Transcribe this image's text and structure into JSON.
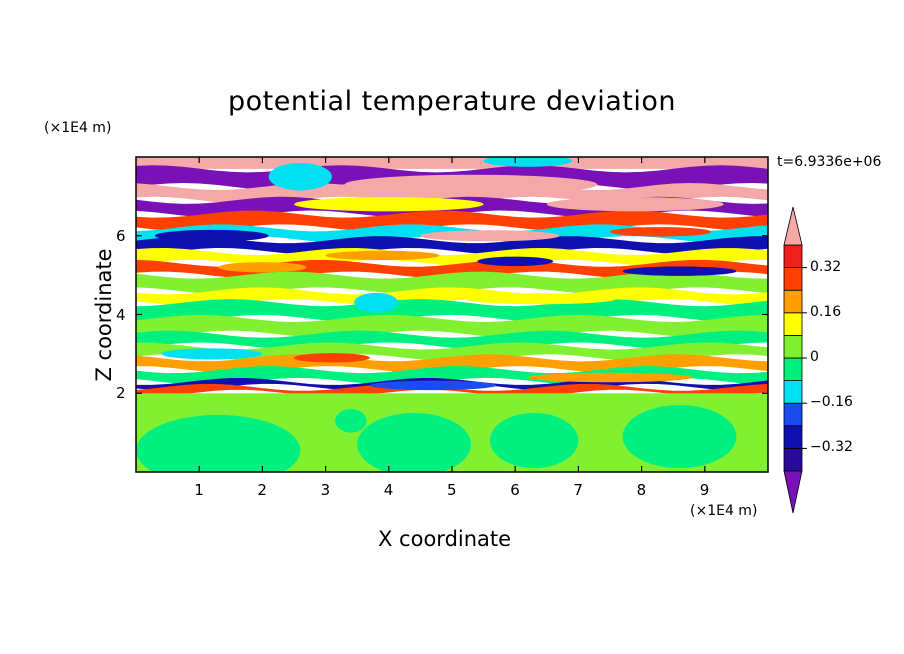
{
  "chart_data": {
    "type": "heatmap",
    "title": "potential temperature deviation",
    "xlabel": "X coordinate",
    "ylabel": "Z coordinate",
    "x_unit": "(×1E4 m)",
    "y_unit": "(×1E4 m)",
    "time_label": "t=6.9336e+06",
    "xlim": [
      0,
      10
    ],
    "ylim": [
      0,
      8
    ],
    "x_ticks": [
      "1",
      "2",
      "3",
      "4",
      "5",
      "6",
      "7",
      "8",
      "9"
    ],
    "y_ticks": [
      "2",
      "4",
      "6"
    ],
    "colorbar": {
      "levels": [
        -0.4,
        -0.32,
        -0.24,
        -0.16,
        -0.08,
        0,
        0.08,
        0.16,
        0.24,
        0.32,
        0.4
      ],
      "colors": [
        "#2a0a9a",
        "#1010b0",
        "#1a4cf0",
        "#00e0f0",
        "#00f080",
        "#80f030",
        "#ffff00",
        "#ffa000",
        "#ff4000",
        "#f02020"
      ],
      "under_color": "#7a10b8",
      "over_color": "#f4a8a8",
      "labels": [
        "0.32",
        "0.16",
        "0",
        "−0.16",
        "−0.32"
      ]
    },
    "bands": [
      {
        "z": [
          7.7,
          8.0
        ],
        "color": "#f4a8a8"
      },
      {
        "z": [
          7.25,
          7.7
        ],
        "color": "#7a10b8"
      },
      {
        "z": [
          6.9,
          7.25
        ],
        "color": "#f4a8a8"
      },
      {
        "z": [
          6.55,
          6.9
        ],
        "color": "#7a10b8"
      },
      {
        "z": [
          6.2,
          6.55
        ],
        "color": "#ff4000"
      },
      {
        "z": [
          5.9,
          6.2
        ],
        "color": "#00e0f0"
      },
      {
        "z": [
          5.6,
          5.9
        ],
        "color": "#1010b0"
      },
      {
        "z": [
          5.3,
          5.6
        ],
        "color": "#ffff00"
      },
      {
        "z": [
          5.0,
          5.3
        ],
        "color": "#ff4000"
      },
      {
        "z": [
          4.6,
          5.0
        ],
        "color": "#80f030"
      },
      {
        "z": [
          4.3,
          4.6
        ],
        "color": "#ffff00"
      },
      {
        "z": [
          3.9,
          4.3
        ],
        "color": "#00f080"
      },
      {
        "z": [
          3.5,
          3.9
        ],
        "color": "#80f030"
      },
      {
        "z": [
          3.2,
          3.5
        ],
        "color": "#00f080"
      },
      {
        "z": [
          2.9,
          3.2
        ],
        "color": "#80f030"
      },
      {
        "z": [
          2.6,
          2.9
        ],
        "color": "#ffa000"
      },
      {
        "z": [
          2.3,
          2.6
        ],
        "color": "#00f080"
      },
      {
        "z": [
          2.15,
          2.3
        ],
        "color": "#1010b0"
      },
      {
        "z": [
          2.0,
          2.15
        ],
        "color": "#ff4000"
      },
      {
        "z": [
          0.0,
          2.0
        ],
        "color": "#80f030"
      }
    ],
    "patches": [
      {
        "x": 5.3,
        "z": 7.3,
        "rx": 2.0,
        "rz": 0.25,
        "color": "#f4a8a8"
      },
      {
        "x": 2.6,
        "z": 7.5,
        "rx": 0.5,
        "rz": 0.35,
        "color": "#00e0f0"
      },
      {
        "x": 6.2,
        "z": 7.9,
        "rx": 0.7,
        "rz": 0.15,
        "color": "#00e0f0"
      },
      {
        "x": 4.0,
        "z": 6.8,
        "rx": 1.5,
        "rz": 0.18,
        "color": "#ffff00"
      },
      {
        "x": 7.9,
        "z": 6.8,
        "rx": 1.4,
        "rz": 0.18,
        "color": "#f4a8a8"
      },
      {
        "x": 1.2,
        "z": 6.0,
        "rx": 0.9,
        "rz": 0.15,
        "color": "#1010b0"
      },
      {
        "x": 5.6,
        "z": 6.0,
        "rx": 1.1,
        "rz": 0.14,
        "color": "#f4a8a8"
      },
      {
        "x": 8.3,
        "z": 6.1,
        "rx": 0.8,
        "rz": 0.12,
        "color": "#ff4000"
      },
      {
        "x": 6.0,
        "z": 5.35,
        "rx": 0.6,
        "rz": 0.12,
        "color": "#1010b0"
      },
      {
        "x": 3.9,
        "z": 5.5,
        "rx": 0.9,
        "rz": 0.12,
        "color": "#ffa000"
      },
      {
        "x": 2.0,
        "z": 5.2,
        "rx": 0.7,
        "rz": 0.13,
        "color": "#ffa000"
      },
      {
        "x": 8.6,
        "z": 5.1,
        "rx": 0.9,
        "rz": 0.12,
        "color": "#1010b0"
      },
      {
        "x": 3.8,
        "z": 4.3,
        "rx": 0.35,
        "rz": 0.25,
        "color": "#00e0f0"
      },
      {
        "x": 6.4,
        "z": 4.4,
        "rx": 1.2,
        "rz": 0.14,
        "color": "#ffff00"
      },
      {
        "x": 1.2,
        "z": 3.0,
        "rx": 0.8,
        "rz": 0.14,
        "color": "#00e0f0"
      },
      {
        "x": 3.1,
        "z": 2.9,
        "rx": 0.6,
        "rz": 0.12,
        "color": "#ff4000"
      },
      {
        "x": 7.5,
        "z": 2.4,
        "rx": 1.3,
        "rz": 0.12,
        "color": "#ffa000"
      },
      {
        "x": 4.7,
        "z": 2.2,
        "rx": 1.0,
        "rz": 0.12,
        "color": "#1a4cf0"
      },
      {
        "x": 1.3,
        "z": 0.55,
        "rx": 1.3,
        "rz": 0.9,
        "color": "#00f080"
      },
      {
        "x": 4.4,
        "z": 0.7,
        "rx": 0.9,
        "rz": 0.8,
        "color": "#00f080"
      },
      {
        "x": 6.3,
        "z": 0.8,
        "rx": 0.7,
        "rz": 0.7,
        "color": "#00f080"
      },
      {
        "x": 8.6,
        "z": 0.9,
        "rx": 0.9,
        "rz": 0.8,
        "color": "#00f080"
      },
      {
        "x": 3.4,
        "z": 1.3,
        "rx": 0.25,
        "rz": 0.3,
        "color": "#00f080"
      }
    ]
  }
}
